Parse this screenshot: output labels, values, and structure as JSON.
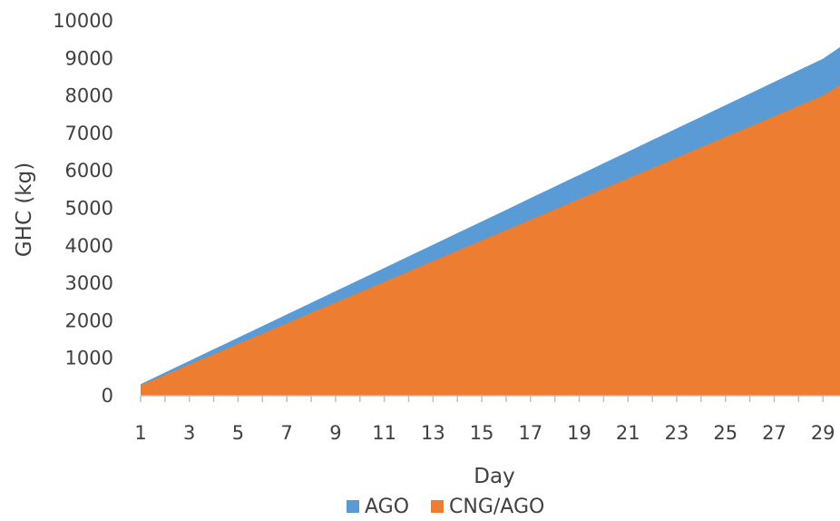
{
  "chart_data": {
    "type": "area",
    "stacked": false,
    "xlabel": "Day",
    "ylabel": "GHC (kg)",
    "x": [
      1,
      2,
      3,
      4,
      5,
      6,
      7,
      8,
      9,
      10,
      11,
      12,
      13,
      14,
      15,
      16,
      17,
      18,
      19,
      20,
      21,
      22,
      23,
      24,
      25,
      26,
      27,
      28,
      29,
      30
    ],
    "x_ticks": [
      1,
      3,
      5,
      7,
      9,
      11,
      13,
      15,
      17,
      19,
      21,
      23,
      25,
      27,
      29
    ],
    "ylim": [
      0,
      10000
    ],
    "y_ticks": [
      0,
      1000,
      2000,
      3000,
      4000,
      5000,
      6000,
      7000,
      8000,
      9000,
      10000
    ],
    "grid": false,
    "legend_position": "bottom",
    "series": [
      {
        "name": "AGO",
        "color": "#5b9bd5",
        "values": [
          310,
          620,
          930,
          1240,
          1550,
          1860,
          2170,
          2480,
          2790,
          3100,
          3410,
          3720,
          4030,
          4340,
          4650,
          4960,
          5270,
          5580,
          5890,
          6200,
          6510,
          6820,
          7130,
          7440,
          7750,
          8060,
          8370,
          8680,
          8990,
          9300
        ]
      },
      {
        "name": "CNG/AGO",
        "color": "#ed7d31",
        "values": [
          276,
          552,
          828,
          1104,
          1380,
          1656,
          1932,
          2208,
          2484,
          2760,
          3036,
          3312,
          3588,
          3864,
          4140,
          4416,
          4692,
          4968,
          5244,
          5520,
          5796,
          6072,
          6348,
          6624,
          6900,
          7176,
          7452,
          7728,
          8004,
          8280
        ]
      }
    ]
  }
}
